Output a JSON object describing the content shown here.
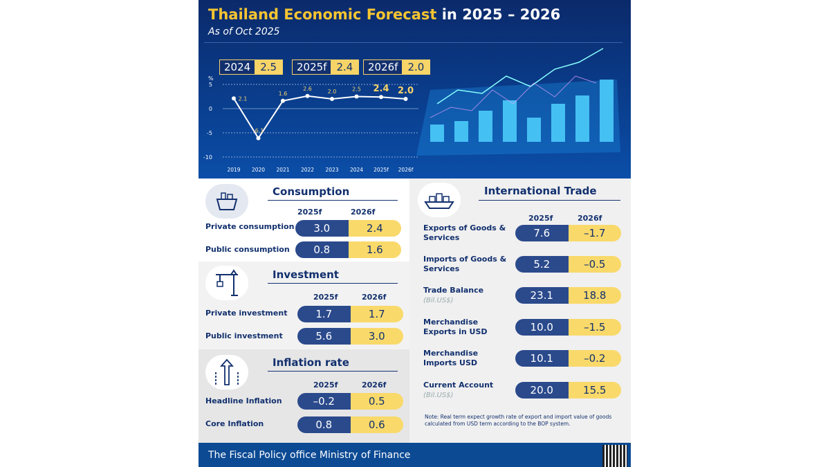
{
  "header": {
    "title_main": "Thailand Economic Forecast",
    "title_years": " in 2025 – 2026",
    "subtitle": "As of Oct 2025"
  },
  "kpis": [
    {
      "year": "2024",
      "value": "2.5"
    },
    {
      "year": "2025f",
      "value": "2.4"
    },
    {
      "year": "2026f",
      "value": "2.0"
    }
  ],
  "chart_data": {
    "type": "line",
    "ylabel": "%",
    "ylim": [
      -10,
      5
    ],
    "yticks": [
      "5",
      "0",
      "-5",
      "-10"
    ],
    "grid": true,
    "categories": [
      "2019",
      "2020",
      "2021",
      "2022",
      "2023",
      "2024",
      "2025f",
      "2026f"
    ],
    "values": [
      2.1,
      -6.1,
      1.6,
      2.6,
      2.0,
      2.5,
      2.4,
      2.0
    ],
    "labels": [
      "2.1",
      "-6.1",
      "1.6",
      "2.6",
      "2.0",
      "2.5",
      "2.4",
      "2.0"
    ]
  },
  "col_2025": "2025f",
  "col_2026": "2026f",
  "consumption": {
    "title": "Consumption",
    "rows": [
      {
        "label": "Private consumption",
        "a": "3.0",
        "b": "2.4"
      },
      {
        "label": "Public consumption",
        "a": "0.8",
        "b": "1.6"
      }
    ]
  },
  "investment": {
    "title": "Investment",
    "rows": [
      {
        "label": "Private investment",
        "a": "1.7",
        "b": "1.7"
      },
      {
        "label": "Public investment",
        "a": "5.6",
        "b": "3.0"
      }
    ]
  },
  "inflation": {
    "title": "Inflation rate",
    "rows": [
      {
        "label": "Headline Inflation",
        "a": "–0.2",
        "b": "0.5"
      },
      {
        "label": "Core Inflation",
        "a": "0.8",
        "b": "0.6"
      }
    ]
  },
  "trade": {
    "title": "International Trade",
    "unit": "(Bil.US$)",
    "rows": [
      {
        "label": "Exports of Goods &",
        "label2": "Services",
        "a": "7.6",
        "b": "–1.7"
      },
      {
        "label": "Imports of Goods &",
        "label2": "Services",
        "a": "5.2",
        "b": "–0.5"
      },
      {
        "label": "Trade Balance",
        "a": "23.1",
        "b": "18.8",
        "unit": true
      },
      {
        "label": "Merchandise",
        "label2": "Exports in USD",
        "a": "10.0",
        "b": "–1.5"
      },
      {
        "label": "Merchandise",
        "label2": "Imports USD",
        "a": "10.1",
        "b": "–0.2"
      },
      {
        "label": "Current Account",
        "a": "20.0",
        "b": "15.5",
        "unit": true
      }
    ],
    "note": "Note: Real term expect growth rate of export and import value of goods calculated from USD term according to the BOP system."
  },
  "footer": "The Fiscal Policy office Ministry of Finance",
  "colors": {
    "navy": "#12306e",
    "pill_blue": "#2b4a8c",
    "pill_yellow": "#f9d96a",
    "title_yellow": "#f7c531"
  }
}
